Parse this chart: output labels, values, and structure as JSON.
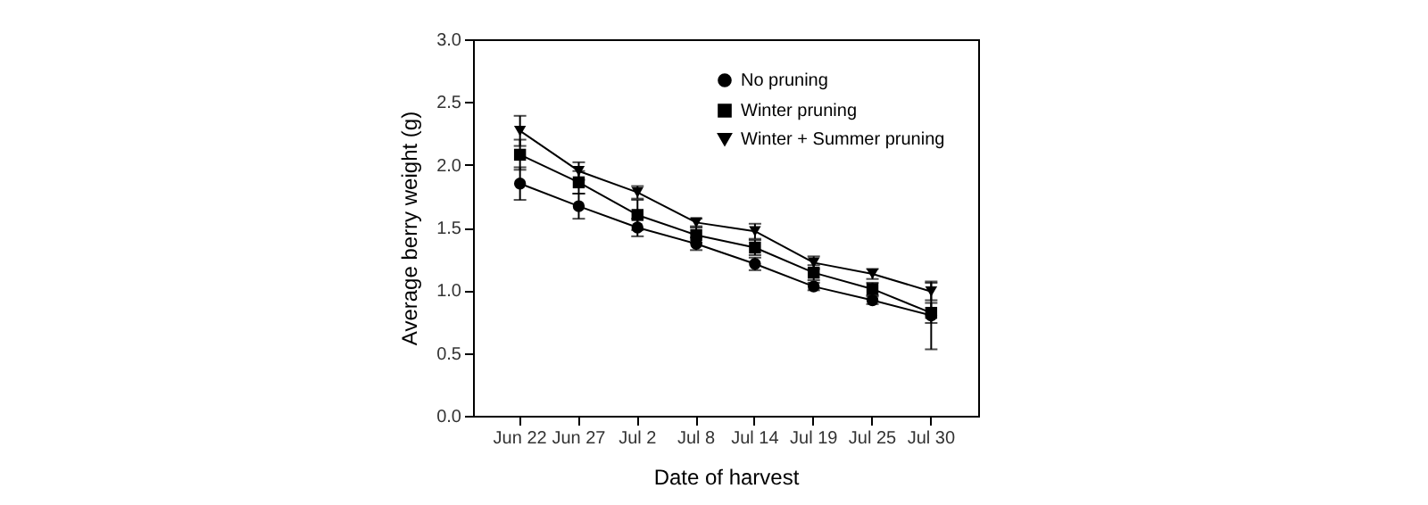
{
  "chart_data": {
    "type": "line",
    "xlabel": "Date of harvest",
    "ylabel": "Average berry weight (g)",
    "categories": [
      "Jun 22",
      "Jun 27",
      "Jul 2",
      "Jul 8",
      "Jul 14",
      "Jul 19",
      "Jul 25",
      "Jul 30"
    ],
    "series": [
      {
        "name": "No pruning",
        "color": "#000000",
        "marker": "circle",
        "values": [
          1.85,
          1.67,
          1.5,
          1.37,
          1.21,
          1.03,
          0.92,
          0.8
        ],
        "errors": [
          0.13,
          0.1,
          0.07,
          0.05,
          0.05,
          0.03,
          0.03,
          0.27
        ]
      },
      {
        "name": "Winter pruning",
        "color": "#000000",
        "marker": "square",
        "values": [
          2.08,
          1.86,
          1.6,
          1.44,
          1.34,
          1.14,
          1.01,
          0.82
        ],
        "errors": [
          0.12,
          0.09,
          0.12,
          0.06,
          0.06,
          0.06,
          0.05,
          0.08
        ]
      },
      {
        "name": "Winter + Summer pruning",
        "color": "#000000",
        "marker": "triangle",
        "values": [
          2.27,
          1.95,
          1.78,
          1.54,
          1.47,
          1.22,
          1.13,
          0.99
        ],
        "errors": [
          0.12,
          0.07,
          0.05,
          0.03,
          0.06,
          0.05,
          0.04,
          0.07
        ]
      }
    ],
    "ylim": [
      0,
      3
    ],
    "yticks": [
      {
        "value": 0,
        "label": "0.0"
      },
      0.5,
      {
        "value": 1,
        "label": "1.0"
      },
      1.5,
      {
        "value": 2,
        "label": "2.0"
      },
      2.5,
      {
        "value": 3,
        "label": "3.0"
      }
    ],
    "grid": false,
    "legend": "top right"
  }
}
